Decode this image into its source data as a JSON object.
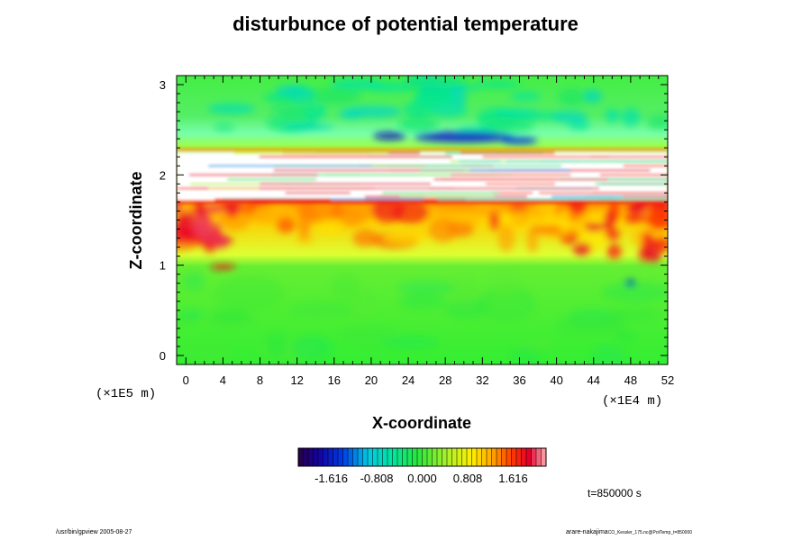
{
  "title": "disturbunce of potential temperature",
  "time_label": "t=850000 s",
  "footer_left": "/usr/bin/gpview 2005-08-27",
  "footer_right": "arare-nakajima",
  "footer_right_small": "CO_Kessler_175.nc@PotTemp_t=850000",
  "chart_data": {
    "type": "heatmap",
    "title": "disturbunce of potential temperature",
    "xlabel": "X-coordinate",
    "ylabel": "Z-coordinate",
    "x_scale_label": "(×1E4 m)",
    "y_scale_label": "(×1E5 m)",
    "xlim": [
      -1,
      52
    ],
    "ylim": [
      -0.1,
      3.1
    ],
    "x_ticks": [
      0,
      4,
      8,
      12,
      16,
      20,
      24,
      28,
      32,
      36,
      40,
      44,
      48,
      52
    ],
    "x_tick_labels": [
      "0",
      "4",
      "8",
      "12",
      "16",
      "20",
      "24",
      "28",
      "32",
      "36",
      "40",
      "44",
      "48",
      "52"
    ],
    "y_ticks": [
      0,
      1,
      2,
      3
    ],
    "y_tick_labels": [
      "0",
      "1",
      "2",
      "3"
    ],
    "colorbar": {
      "range": [
        -2.2,
        2.2
      ],
      "ticks": [
        -1.616,
        -0.808,
        0.0,
        0.808,
        1.616
      ],
      "tick_labels": [
        "-1.616",
        "-0.808",
        "0.000",
        "0.808",
        "1.616"
      ]
    },
    "field_description": [
      {
        "z_range": [
          -0.1,
          0.95
        ],
        "approx_value": 0.05
      },
      {
        "z_range": [
          0.95,
          1.7
        ],
        "approx_value": 0.9
      },
      {
        "z_range": [
          1.7,
          2.3
        ],
        "approx_value": "out of range"
      },
      {
        "z_range": [
          2.3,
          3.1
        ],
        "approx_value": -0.2
      }
    ]
  },
  "colors": {
    "cold_extreme": "#3a0060",
    "neutral": "#33ee33",
    "warm_extreme": "#ff9999"
  }
}
